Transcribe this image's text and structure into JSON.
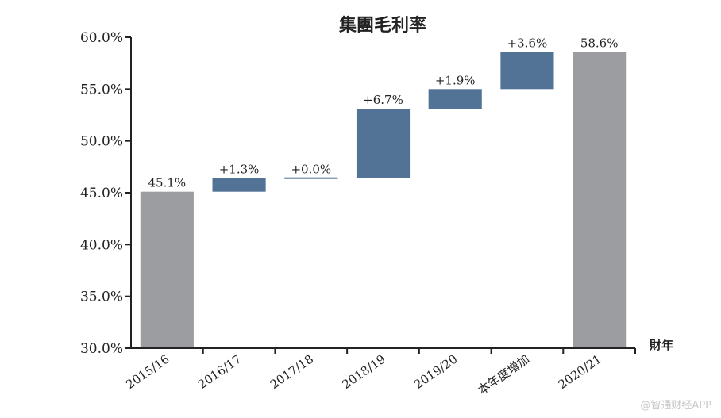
{
  "chart_data": {
    "type": "bar",
    "subtype": "waterfall",
    "title": "集團毛利率",
    "xlabel": "財年",
    "ylabel": "",
    "ylim": [
      30,
      60
    ],
    "yticks": [
      30,
      35,
      40,
      45,
      50,
      55,
      60
    ],
    "ytick_labels": [
      "30.0%",
      "35.0%",
      "40.0%",
      "45.0%",
      "50.0%",
      "55.0%",
      "60.0%"
    ],
    "categories": [
      "2015/16",
      "2016/17",
      "2017/18",
      "2018/19",
      "2019/20",
      "本年度增加",
      "2020/21"
    ],
    "bars": [
      {
        "kind": "total",
        "start": 30,
        "end": 45.1,
        "label": "45.1%"
      },
      {
        "kind": "delta",
        "start": 45.1,
        "end": 46.4,
        "label": "+1.3%"
      },
      {
        "kind": "delta",
        "start": 46.4,
        "end": 46.4,
        "label": "+0.0%"
      },
      {
        "kind": "delta",
        "start": 46.4,
        "end": 53.1,
        "label": "+6.7%"
      },
      {
        "kind": "delta",
        "start": 53.1,
        "end": 55.0,
        "label": "+1.9%"
      },
      {
        "kind": "delta",
        "start": 55.0,
        "end": 58.6,
        "label": "+3.6%"
      },
      {
        "kind": "total",
        "start": 30,
        "end": 58.6,
        "label": "58.6%"
      }
    ],
    "colors": {
      "total": "#9c9da1",
      "delta": "#527296",
      "final_label": "#c0392b",
      "label": "#222222",
      "axis": "#222222"
    },
    "grid": false,
    "legend": "none"
  },
  "watermark": "@智通财经APP"
}
